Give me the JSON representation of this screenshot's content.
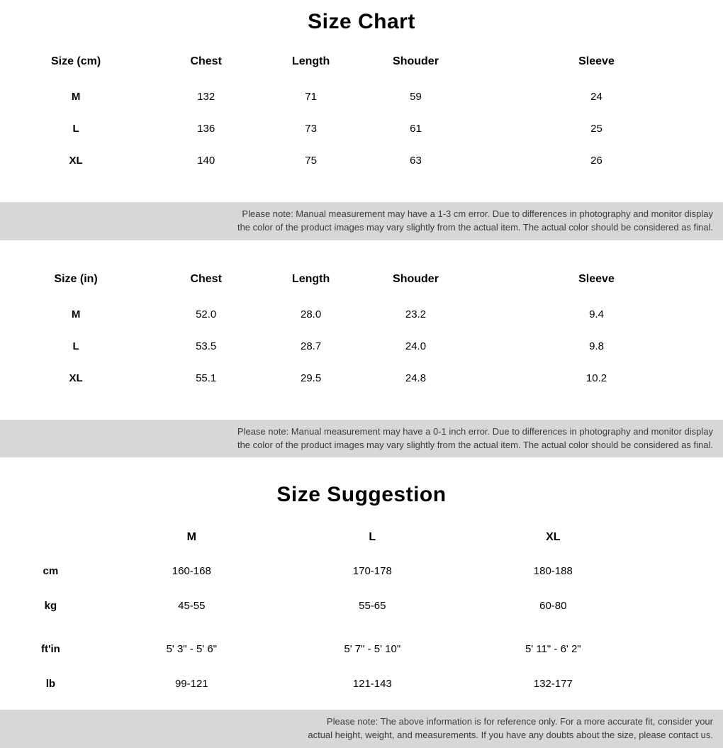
{
  "titles": {
    "size_chart": "Size Chart",
    "size_suggestion": "Size Suggestion"
  },
  "size_chart_cm": {
    "headers": [
      "Size (cm)",
      "Chest",
      "Length",
      "Shouder",
      "Sleeve"
    ],
    "rows": [
      {
        "label": "M",
        "chest": "132",
        "length": "71",
        "shoulder": "59",
        "sleeve": "24"
      },
      {
        "label": "L",
        "chest": "136",
        "length": "73",
        "shoulder": "61",
        "sleeve": "25"
      },
      {
        "label": "XL",
        "chest": "140",
        "length": "75",
        "shoulder": "63",
        "sleeve": "26"
      }
    ],
    "note_line1": "Please note: Manual measurement may have a 1-3 cm error. Due to differences in photography and monitor display",
    "note_line2": "the color of the product images may vary slightly from the actual item. The actual color should be considered as final.",
    "col_widths": [
      "21%",
      "15%",
      "14%",
      "15%",
      "35%"
    ]
  },
  "size_chart_in": {
    "headers": [
      "Size (in)",
      "Chest",
      "Length",
      "Shouder",
      "Sleeve"
    ],
    "rows": [
      {
        "label": "M",
        "chest": "52.0",
        "length": "28.0",
        "shoulder": "23.2",
        "sleeve": "9.4"
      },
      {
        "label": "L",
        "chest": "53.5",
        "length": "28.7",
        "shoulder": "24.0",
        "sleeve": "9.8"
      },
      {
        "label": "XL",
        "chest": "55.1",
        "length": "29.5",
        "shoulder": "24.8",
        "sleeve": "10.2"
      }
    ],
    "note_line1": "Please note: Manual measurement may have a 0-1 inch error. Due to differences in photography and monitor display",
    "note_line2": "the color of the product images may vary slightly from the actual item. The actual color should be considered as final.",
    "col_widths": [
      "21%",
      "15%",
      "14%",
      "15%",
      "35%"
    ]
  },
  "size_suggestion": {
    "headers": [
      "",
      "M",
      "L",
      "XL"
    ],
    "rows": [
      {
        "unit": "cm",
        "m": "160-168",
        "l": "170-178",
        "xl": "180-188"
      },
      {
        "unit": "kg",
        "m": "45-55",
        "l": "55-65",
        "xl": "60-80"
      }
    ],
    "rows2": [
      {
        "unit": "ft'in",
        "m": "5' 3\" - 5' 6\"",
        "l": "5' 7\" - 5' 10\"",
        "xl": "5' 11\" - 6' 2\""
      },
      {
        "unit": "lb",
        "m": "99-121",
        "l": "121-143",
        "xl": "132-177"
      }
    ],
    "note_line1": "Please note: The above information is for reference only. For a more accurate fit, consider your",
    "note_line2": "actual height, weight, and measurements. If you have any doubts about the size, please contact us.",
    "col_widths": [
      "14%",
      "25%",
      "25%",
      "25%",
      "11%"
    ]
  },
  "colors": {
    "background": "#ffffff",
    "text": "#020202",
    "note_band_bg": "#d7d7d7",
    "note_text": "#3c3c3c"
  }
}
